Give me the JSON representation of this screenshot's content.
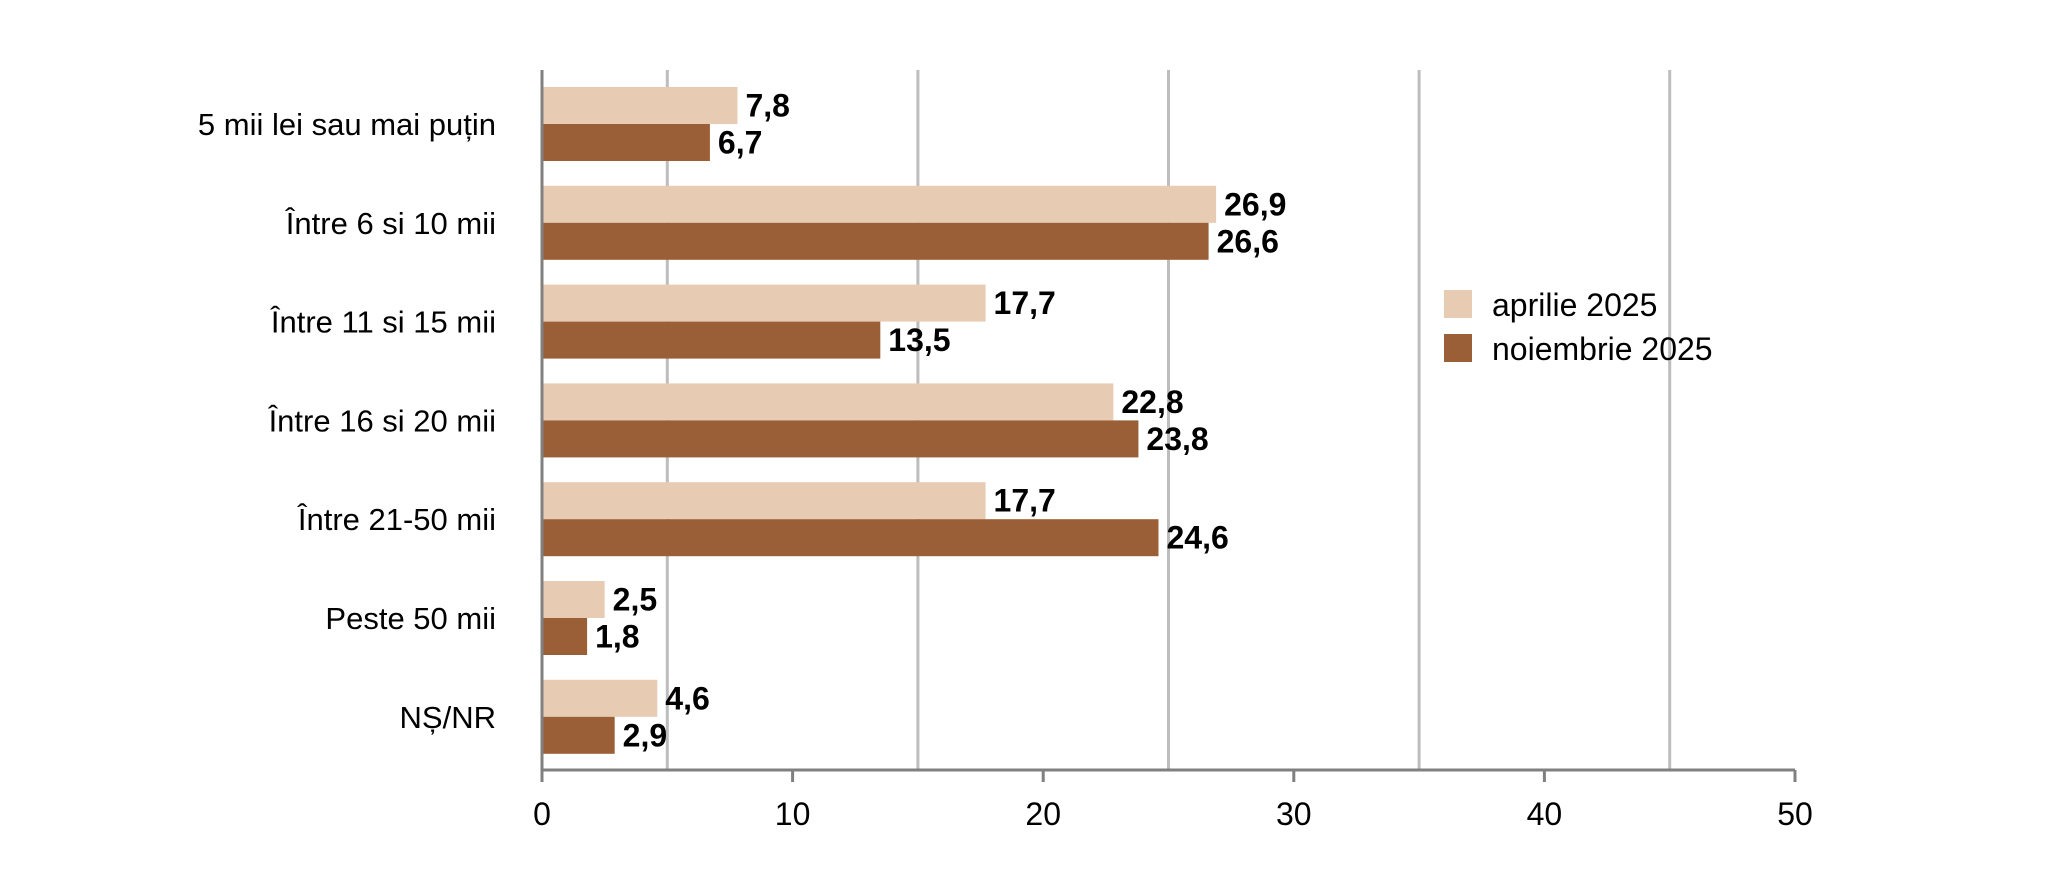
{
  "chart_data": {
    "type": "bar",
    "orientation": "horizontal",
    "categories": [
      "5 mii lei sau mai puțin",
      "Între 6 si 10 mii",
      "Între 11 si 15 mii",
      "Între 16 si 20 mii",
      "Între 21-50 mii",
      "Peste 50 mii",
      "NȘ/NR"
    ],
    "series": [
      {
        "name": "aprilie 2025",
        "color": "#e8cbb3",
        "values": [
          7.8,
          26.9,
          17.7,
          22.8,
          17.7,
          2.5,
          4.6
        ],
        "labels": [
          "7,8",
          "26,9",
          "17,7",
          "22,8",
          "17,7",
          "2,5",
          "4,6"
        ]
      },
      {
        "name": "noiembrie 2025",
        "color": "#9a5f36",
        "values": [
          6.7,
          26.6,
          13.5,
          23.8,
          24.6,
          1.8,
          2.9
        ],
        "labels": [
          "6,7",
          "26,6",
          "13,5",
          "23,8",
          "24,6",
          "1,8",
          "2,9"
        ]
      }
    ],
    "xlim": [
      0,
      50
    ],
    "ticks": [
      0,
      10,
      20,
      30,
      40,
      50
    ],
    "tick_labels": [
      "0",
      "10",
      "20",
      "30",
      "40",
      "50"
    ],
    "gridlines": [
      5,
      15,
      25,
      35,
      45
    ],
    "grid": true,
    "legend_position": "right",
    "title": "",
    "xlabel": "",
    "ylabel": ""
  }
}
